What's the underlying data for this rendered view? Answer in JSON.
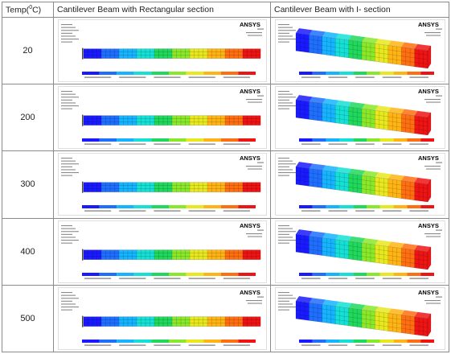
{
  "header": {
    "temp_label_prefix": "Temp(",
    "temp_label_sup": "0",
    "temp_label_suffix": "C)",
    "rect_col": "Cantilever Beam with Rectangular section",
    "ibeam_col": "Cantilever Beam with I- section"
  },
  "brand": "ANSYS",
  "rows": [
    {
      "temp": "20"
    },
    {
      "temp": "200"
    },
    {
      "temp": "300"
    },
    {
      "temp": "400"
    },
    {
      "temp": "500"
    }
  ],
  "contour_colors": [
    "#1a1aff",
    "#1f6fff",
    "#15b4ff",
    "#15e0d6",
    "#20d85c",
    "#8ae82a",
    "#e8e81e",
    "#ffb414",
    "#ff6e10",
    "#ee1414"
  ]
}
